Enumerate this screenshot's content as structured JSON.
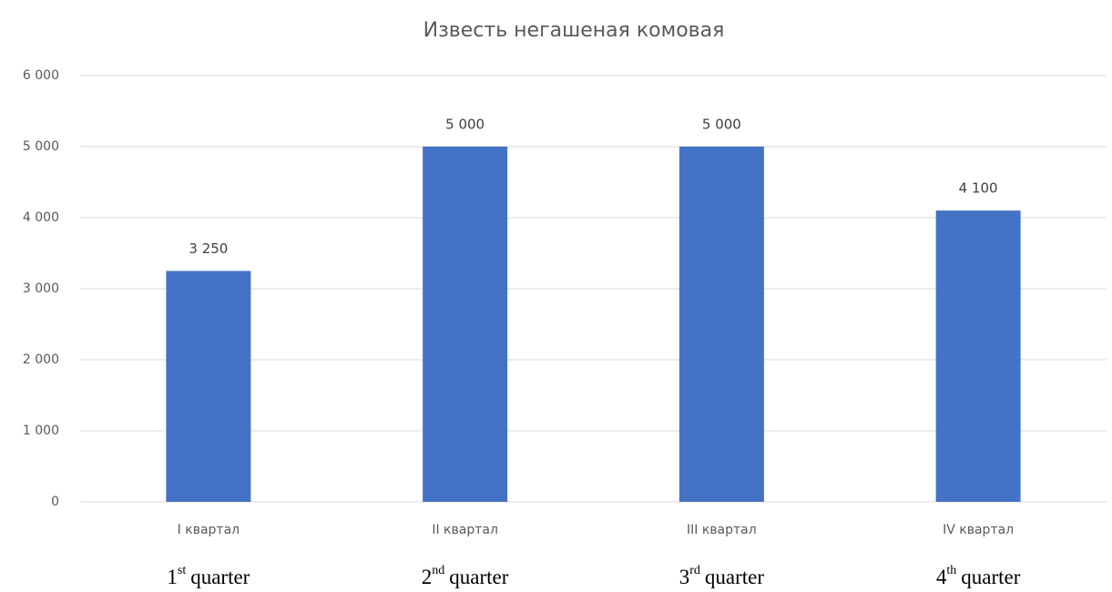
{
  "chart_data": {
    "type": "bar",
    "title": "Известь негашеная комовая",
    "categories": [
      "I квартал",
      "II квартал",
      "III квартал",
      "IV квартал"
    ],
    "values": [
      3250,
      5000,
      5000,
      4100
    ],
    "value_labels": [
      "3 250",
      "5 000",
      "5 000",
      "4 100"
    ],
    "color": "#4472c4",
    "ylim": [
      0,
      6000
    ],
    "yticks": [
      0,
      {
        "value": 1000,
        "label": "1 000"
      },
      {
        "value": 2000,
        "label": "2 000"
      },
      {
        "value": 3000,
        "label": "3 000"
      },
      {
        "value": 4000,
        "label": "4 000"
      },
      {
        "value": 5000,
        "label": "5 000"
      },
      {
        "value": 6000,
        "label": "6 000"
      }
    ],
    "grid": true,
    "annotations": [
      {
        "number": "1",
        "suffix": "st",
        "text": "quarter"
      },
      {
        "number": "2",
        "suffix": "nd",
        "text": "quarter"
      },
      {
        "number": "3",
        "suffix": "rd",
        "text": "quarter"
      },
      {
        "number": "4",
        "suffix": "th",
        "text": "quarter"
      }
    ]
  }
}
